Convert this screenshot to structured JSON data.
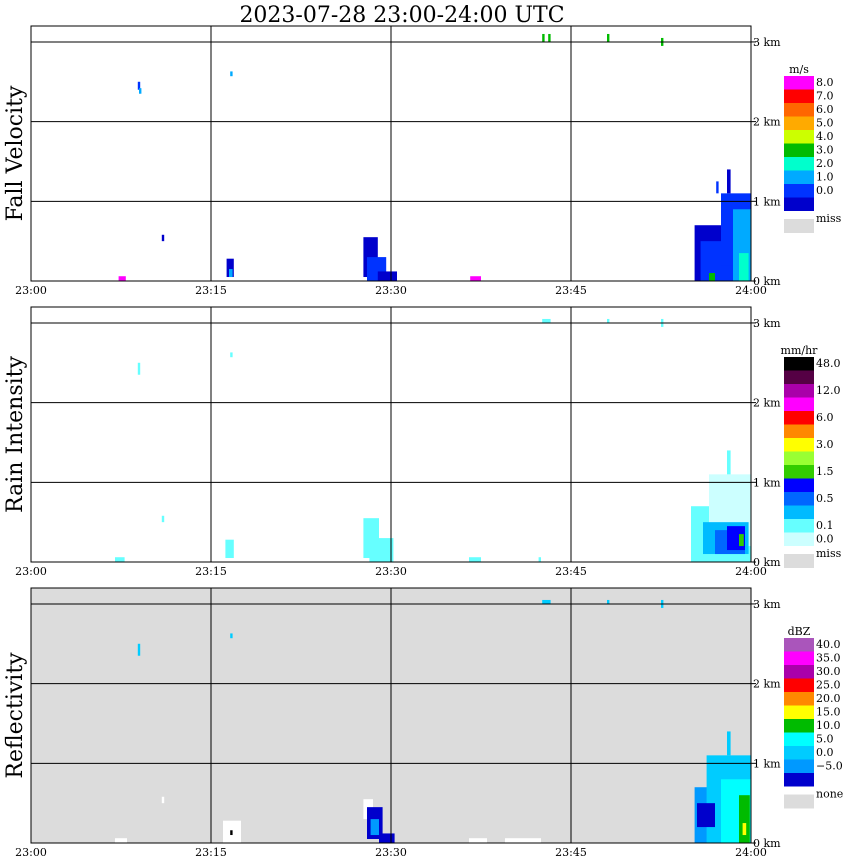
{
  "title": "2023-07-28   23:00-24:00 UTC",
  "colors": {
    "missing": "#dcdcdc",
    "frame": "#000000",
    "none": "#dcdcdc"
  },
  "chart_data": [
    {
      "type": "heatmap",
      "id": "fall",
      "ylabel": "Fall Velocity",
      "unit": "m/s",
      "x_ticks": [
        "23:00",
        "23:15",
        "23:30",
        "23:45",
        "24:00"
      ],
      "y_ticks": [
        "0 km",
        "1 km",
        "2 km",
        "3 km"
      ],
      "xlim_minutes": [
        0,
        60
      ],
      "ylim_km": [
        0,
        3.2
      ],
      "background": "#ffffff",
      "legend": [
        {
          "label": "8.0",
          "color": "#ff00ff"
        },
        {
          "label": "7.0",
          "color": "#ff0000"
        },
        {
          "label": "6.0",
          "color": "#ff6600"
        },
        {
          "label": "5.0",
          "color": "#ffaa00"
        },
        {
          "label": "4.0",
          "color": "#ccff00"
        },
        {
          "label": "3.0",
          "color": "#00bb00"
        },
        {
          "label": "2.0",
          "color": "#00ffcc"
        },
        {
          "label": "1.0",
          "color": "#00aaff"
        },
        {
          "label": "0.0",
          "color": "#0033ff"
        },
        {
          "label": "",
          "color": "#0000cc"
        }
      ],
      "missing_label": "miss",
      "echoes": [
        {
          "t0": 8.9,
          "t1": 9.1,
          "h0": 2.4,
          "h1": 2.5,
          "color": "#0033ff"
        },
        {
          "t0": 9.0,
          "t1": 9.2,
          "h0": 2.35,
          "h1": 2.42,
          "color": "#00aaff"
        },
        {
          "t0": 16.6,
          "t1": 16.8,
          "h0": 2.57,
          "h1": 2.63,
          "color": "#00aaff"
        },
        {
          "t0": 10.9,
          "t1": 11.1,
          "h0": 0.5,
          "h1": 0.58,
          "color": "#0000cc"
        },
        {
          "t0": 7.3,
          "t1": 7.9,
          "h0": 0.0,
          "h1": 0.06,
          "color": "#ff00ff"
        },
        {
          "t0": 36.6,
          "t1": 37.5,
          "h0": 0.0,
          "h1": 0.06,
          "color": "#ff00ff"
        },
        {
          "t0": 16.3,
          "t1": 16.9,
          "h0": 0.05,
          "h1": 0.28,
          "color": "#0000cc"
        },
        {
          "t0": 16.5,
          "t1": 16.8,
          "h0": 0.05,
          "h1": 0.15,
          "color": "#00aaff"
        },
        {
          "t0": 27.7,
          "t1": 28.9,
          "h0": 0.05,
          "h1": 0.55,
          "color": "#0000cc"
        },
        {
          "t0": 28.0,
          "t1": 29.6,
          "h0": 0.0,
          "h1": 0.3,
          "color": "#0033ff"
        },
        {
          "t0": 28.9,
          "t1": 30.5,
          "h0": 0.0,
          "h1": 0.12,
          "color": "#0000cc"
        },
        {
          "t0": 42.6,
          "t1": 42.8,
          "h0": 3.0,
          "h1": 3.1,
          "color": "#00bb00"
        },
        {
          "t0": 43.1,
          "t1": 43.3,
          "h0": 3.0,
          "h1": 3.1,
          "color": "#00bb00"
        },
        {
          "t0": 48.0,
          "t1": 48.2,
          "h0": 3.0,
          "h1": 3.1,
          "color": "#00bb00"
        },
        {
          "t0": 52.5,
          "t1": 52.7,
          "h0": 2.95,
          "h1": 3.05,
          "color": "#00bb00"
        },
        {
          "t0": 55.3,
          "t1": 60.0,
          "h0": 0.0,
          "h1": 0.7,
          "color": "#0000cc"
        },
        {
          "t0": 55.8,
          "t1": 59.5,
          "h0": 0.0,
          "h1": 0.5,
          "color": "#0033ff"
        },
        {
          "t0": 57.5,
          "t1": 60.0,
          "h0": 0.2,
          "h1": 1.1,
          "color": "#0033ff"
        },
        {
          "t0": 58.5,
          "t1": 60.0,
          "h0": 0.0,
          "h1": 0.9,
          "color": "#00aaff"
        },
        {
          "t0": 59.0,
          "t1": 59.8,
          "h0": 0.0,
          "h1": 0.35,
          "color": "#00ffcc"
        },
        {
          "t0": 56.5,
          "t1": 57.0,
          "h0": 0.0,
          "h1": 0.1,
          "color": "#00bb00"
        },
        {
          "t0": 58.0,
          "t1": 58.3,
          "h0": 1.1,
          "h1": 1.4,
          "color": "#0000cc"
        },
        {
          "t0": 57.1,
          "t1": 57.3,
          "h0": 1.1,
          "h1": 1.25,
          "color": "#0033ff"
        }
      ]
    },
    {
      "type": "heatmap",
      "id": "rain",
      "ylabel": "Rain Intensity",
      "unit": "mm/hr",
      "x_ticks": [
        "23:00",
        "23:15",
        "23:30",
        "23:45",
        "24:00"
      ],
      "y_ticks": [
        "0 km",
        "1 km",
        "2 km",
        "3 km"
      ],
      "xlim_minutes": [
        0,
        60
      ],
      "ylim_km": [
        0,
        3.2
      ],
      "background": "#ffffff",
      "legend": [
        {
          "label": "48.0",
          "color": "#000000"
        },
        {
          "label": "",
          "color": "#550044"
        },
        {
          "label": "12.0",
          "color": "#aa00aa"
        },
        {
          "label": "",
          "color": "#ff00ff"
        },
        {
          "label": "6.0",
          "color": "#ff0000"
        },
        {
          "label": "",
          "color": "#ff8800"
        },
        {
          "label": "3.0",
          "color": "#ffff00"
        },
        {
          "label": "",
          "color": "#99ff33"
        },
        {
          "label": "1.5",
          "color": "#33cc00"
        },
        {
          "label": "",
          "color": "#0000ff"
        },
        {
          "label": "0.5",
          "color": "#0066ff"
        },
        {
          "label": "",
          "color": "#00bbff"
        },
        {
          "label": "0.1",
          "color": "#66ffff"
        },
        {
          "label": "0.0",
          "color": "#ccffff"
        }
      ],
      "missing_label": "miss",
      "echoes": [
        {
          "t0": 8.9,
          "t1": 9.1,
          "h0": 2.35,
          "h1": 2.5,
          "color": "#66ffff"
        },
        {
          "t0": 16.6,
          "t1": 16.8,
          "h0": 2.57,
          "h1": 2.63,
          "color": "#66ffff"
        },
        {
          "t0": 10.9,
          "t1": 11.1,
          "h0": 0.5,
          "h1": 0.58,
          "color": "#66ffff"
        },
        {
          "t0": 7.0,
          "t1": 7.8,
          "h0": 0.0,
          "h1": 0.06,
          "color": "#66ffff"
        },
        {
          "t0": 36.5,
          "t1": 37.5,
          "h0": 0.0,
          "h1": 0.06,
          "color": "#66ffff"
        },
        {
          "t0": 16.2,
          "t1": 16.9,
          "h0": 0.05,
          "h1": 0.28,
          "color": "#66ffff"
        },
        {
          "t0": 27.7,
          "t1": 29.0,
          "h0": 0.05,
          "h1": 0.55,
          "color": "#66ffff"
        },
        {
          "t0": 28.2,
          "t1": 30.2,
          "h0": 0.0,
          "h1": 0.3,
          "color": "#66ffff"
        },
        {
          "t0": 42.3,
          "t1": 42.5,
          "h0": 0.0,
          "h1": 0.06,
          "color": "#66ffff"
        },
        {
          "t0": 42.6,
          "t1": 43.3,
          "h0": 3.0,
          "h1": 3.05,
          "color": "#66ffff"
        },
        {
          "t0": 48.0,
          "t1": 48.2,
          "h0": 3.0,
          "h1": 3.05,
          "color": "#66ffff"
        },
        {
          "t0": 52.5,
          "t1": 52.7,
          "h0": 2.95,
          "h1": 3.05,
          "color": "#66ffff"
        },
        {
          "t0": 55.0,
          "t1": 60.0,
          "h0": 0.0,
          "h1": 0.7,
          "color": "#66ffff"
        },
        {
          "t0": 56.5,
          "t1": 60.0,
          "h0": 0.2,
          "h1": 1.1,
          "color": "#ccffff"
        },
        {
          "t0": 56.0,
          "t1": 59.8,
          "h0": 0.1,
          "h1": 0.5,
          "color": "#00bbff"
        },
        {
          "t0": 57.0,
          "t1": 59.5,
          "h0": 0.1,
          "h1": 0.4,
          "color": "#0066ff"
        },
        {
          "t0": 58.0,
          "t1": 59.5,
          "h0": 0.15,
          "h1": 0.45,
          "color": "#0000ff"
        },
        {
          "t0": 59.0,
          "t1": 59.4,
          "h0": 0.2,
          "h1": 0.35,
          "color": "#33cc00"
        },
        {
          "t0": 58.0,
          "t1": 58.3,
          "h0": 1.1,
          "h1": 1.4,
          "color": "#66ffff"
        }
      ]
    },
    {
      "type": "heatmap",
      "id": "refl",
      "ylabel": "Reflectivity",
      "unit": "dBZ",
      "x_ticks": [
        "23:00",
        "23:15",
        "23:30",
        "23:45",
        "24:00"
      ],
      "y_ticks": [
        "0 km",
        "1 km",
        "2 km",
        "3 km"
      ],
      "xlim_minutes": [
        0,
        60
      ],
      "ylim_km": [
        0,
        3.2
      ],
      "background": "#dcdcdc",
      "legend": [
        {
          "label": "40.0",
          "color": "#aa55bb"
        },
        {
          "label": "35.0",
          "color": "#ff00ff"
        },
        {
          "label": "30.0",
          "color": "#aa00aa"
        },
        {
          "label": "25.0",
          "color": "#ff0000"
        },
        {
          "label": "20.0",
          "color": "#ff8800"
        },
        {
          "label": "15.0",
          "color": "#ffff00"
        },
        {
          "label": "10.0",
          "color": "#00bb00"
        },
        {
          "label": "5.0",
          "color": "#00ffff"
        },
        {
          "label": "0.0",
          "color": "#00ccff"
        },
        {
          "label": "−5.0",
          "color": "#0099ff"
        },
        {
          "label": "",
          "color": "#0000cc"
        }
      ],
      "missing_label": "none",
      "echoes": [
        {
          "t0": 8.9,
          "t1": 9.1,
          "h0": 2.35,
          "h1": 2.5,
          "color": "#00ccff"
        },
        {
          "t0": 16.6,
          "t1": 16.8,
          "h0": 2.57,
          "h1": 2.63,
          "color": "#00ccff"
        },
        {
          "t0": 10.9,
          "t1": 11.1,
          "h0": 0.5,
          "h1": 0.58,
          "color": "#ffffff"
        },
        {
          "t0": 7.0,
          "t1": 8.0,
          "h0": 0.0,
          "h1": 0.06,
          "color": "#ffffff"
        },
        {
          "t0": 16.0,
          "t1": 17.5,
          "h0": 0.0,
          "h1": 0.28,
          "color": "#ffffff"
        },
        {
          "t0": 16.6,
          "t1": 16.8,
          "h0": 0.1,
          "h1": 0.16,
          "color": "#000000"
        },
        {
          "t0": 27.7,
          "t1": 28.5,
          "h0": 0.3,
          "h1": 0.55,
          "color": "#ffffff"
        },
        {
          "t0": 28.0,
          "t1": 29.3,
          "h0": 0.05,
          "h1": 0.45,
          "color": "#0000cc"
        },
        {
          "t0": 28.3,
          "t1": 29.0,
          "h0": 0.1,
          "h1": 0.3,
          "color": "#0099ff"
        },
        {
          "t0": 29.0,
          "t1": 30.3,
          "h0": 0.0,
          "h1": 0.12,
          "color": "#0000cc"
        },
        {
          "t0": 36.5,
          "t1": 38.0,
          "h0": 0.0,
          "h1": 0.06,
          "color": "#ffffff"
        },
        {
          "t0": 39.5,
          "t1": 42.5,
          "h0": 0.0,
          "h1": 0.06,
          "color": "#ffffff"
        },
        {
          "t0": 42.6,
          "t1": 43.3,
          "h0": 3.0,
          "h1": 3.05,
          "color": "#00ccff"
        },
        {
          "t0": 48.0,
          "t1": 48.2,
          "h0": 3.0,
          "h1": 3.05,
          "color": "#00ccff"
        },
        {
          "t0": 52.5,
          "t1": 52.7,
          "h0": 2.95,
          "h1": 3.05,
          "color": "#00ccff"
        },
        {
          "t0": 55.3,
          "t1": 60.0,
          "h0": 0.0,
          "h1": 0.7,
          "color": "#0099ff"
        },
        {
          "t0": 56.3,
          "t1": 60.0,
          "h0": 0.0,
          "h1": 1.1,
          "color": "#00ccff"
        },
        {
          "t0": 57.5,
          "t1": 60.0,
          "h0": 0.0,
          "h1": 0.8,
          "color": "#00ffff"
        },
        {
          "t0": 59.0,
          "t1": 59.9,
          "h0": 0.0,
          "h1": 0.6,
          "color": "#00bb00"
        },
        {
          "t0": 59.3,
          "t1": 59.6,
          "h0": 0.1,
          "h1": 0.25,
          "color": "#ffff00"
        },
        {
          "t0": 55.5,
          "t1": 57.0,
          "h0": 0.2,
          "h1": 0.5,
          "color": "#0000cc"
        },
        {
          "t0": 58.0,
          "t1": 58.3,
          "h0": 1.1,
          "h1": 1.4,
          "color": "#00ccff"
        }
      ]
    }
  ]
}
